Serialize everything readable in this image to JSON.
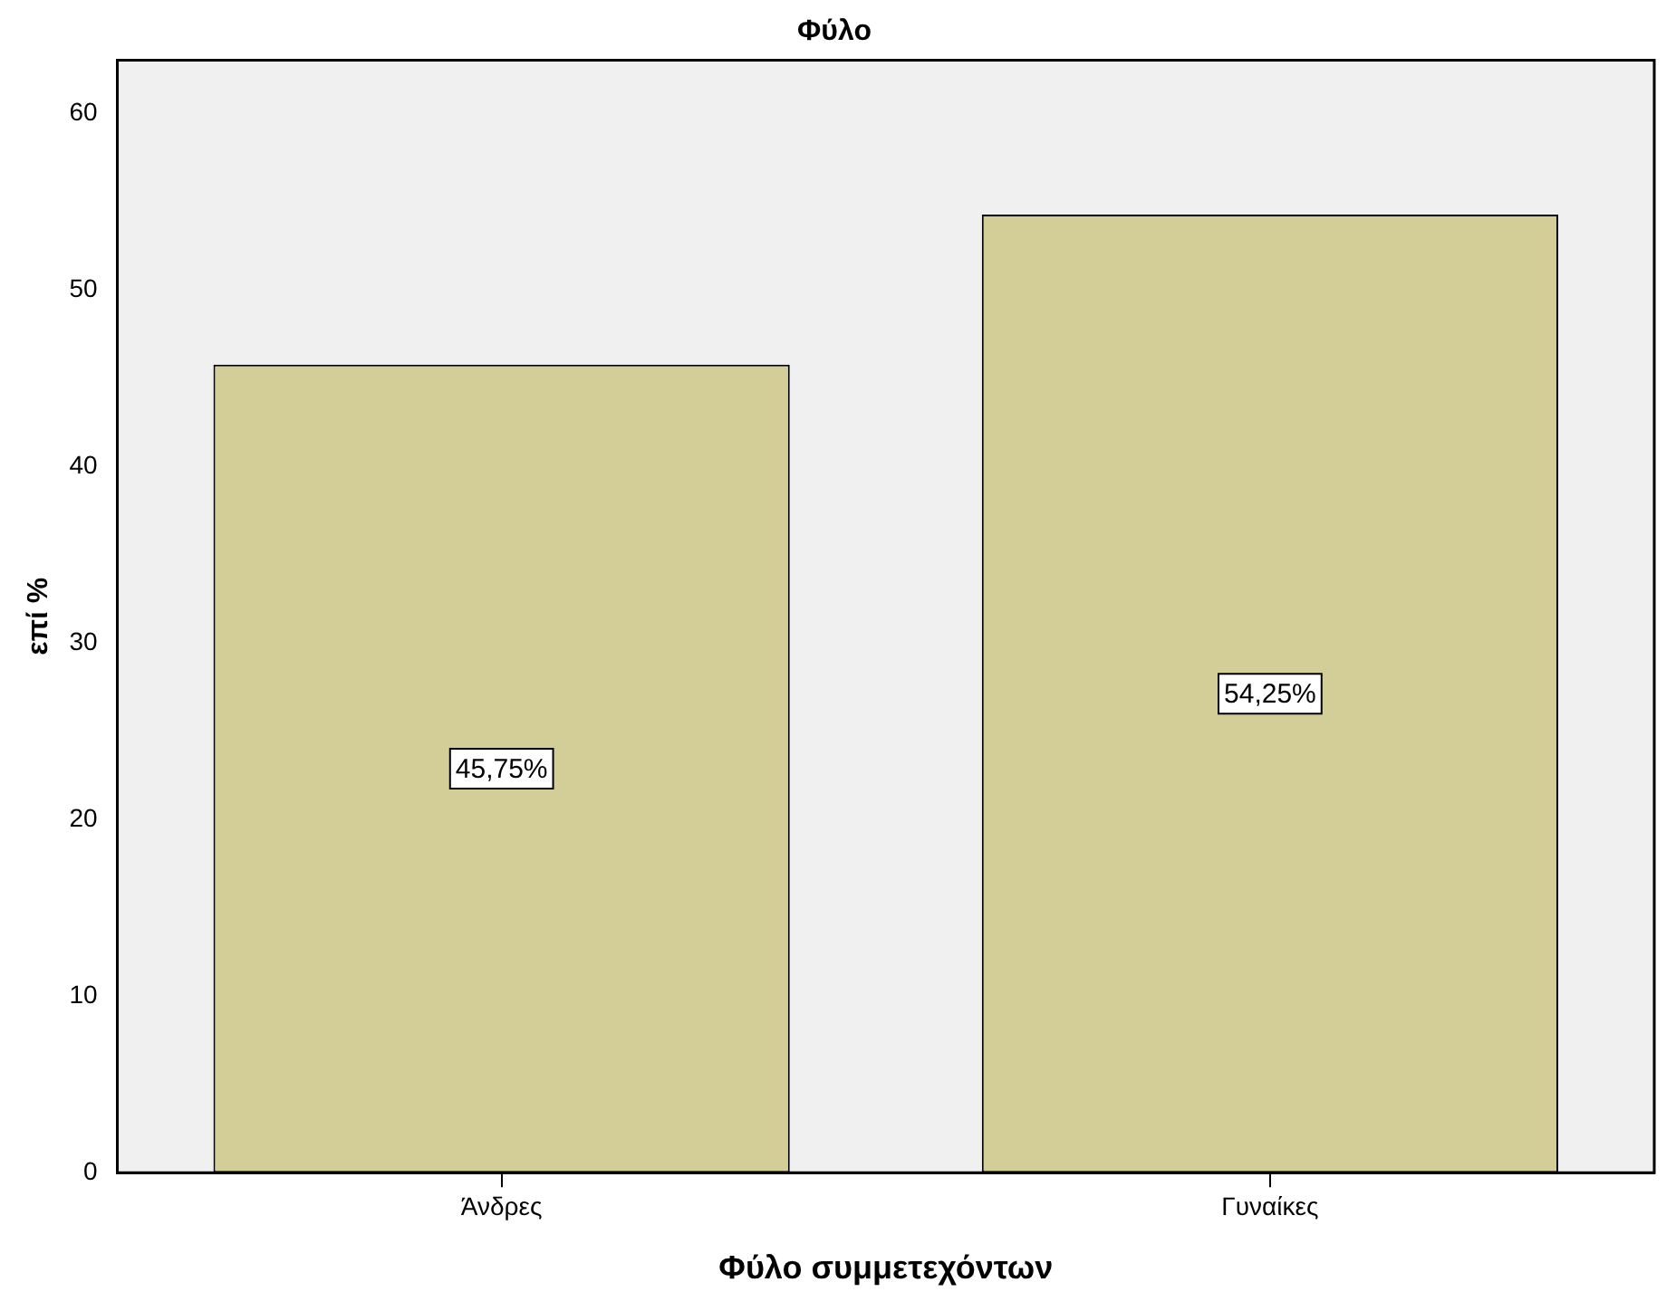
{
  "chart_data": {
    "type": "bar",
    "title": "Φύλο",
    "xlabel": "Φύλο συμμετεχόντων",
    "ylabel": "επί %",
    "categories": [
      "Άνδρες",
      "Γυναίκες"
    ],
    "values": [
      45.75,
      54.25
    ],
    "value_labels": [
      "45,75%",
      "54,25%"
    ],
    "color": "#d3ce98",
    "ylim": [
      0,
      63
    ],
    "yticks": [
      0,
      10,
      20,
      30,
      40,
      50,
      60
    ],
    "grid": false
  }
}
